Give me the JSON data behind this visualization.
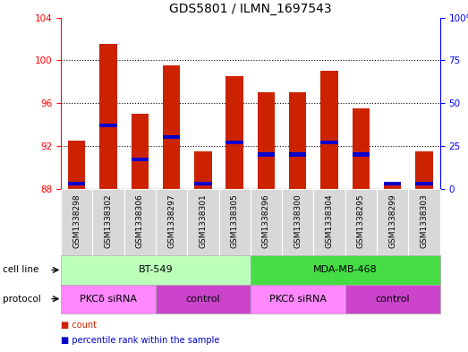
{
  "title": "GDS5801 / ILMN_1697543",
  "samples": [
    "GSM1338298",
    "GSM1338302",
    "GSM1338306",
    "GSM1338297",
    "GSM1338301",
    "GSM1338305",
    "GSM1338296",
    "GSM1338300",
    "GSM1338304",
    "GSM1338295",
    "GSM1338299",
    "GSM1338303"
  ],
  "count_values": [
    92.5,
    101.5,
    95.0,
    99.5,
    91.5,
    98.5,
    97.0,
    97.0,
    99.0,
    95.5,
    88.5,
    91.5
  ],
  "percentile_values": [
    3.0,
    37.0,
    17.0,
    30.0,
    3.0,
    27.0,
    20.0,
    20.0,
    27.0,
    20.0,
    3.0,
    3.0
  ],
  "ylim_left": [
    88,
    104
  ],
  "ylim_right": [
    0,
    100
  ],
  "yticks_left": [
    88,
    92,
    96,
    100,
    104
  ],
  "yticks_right": [
    0,
    25,
    50,
    75,
    100
  ],
  "ytick_labels_right": [
    "0",
    "25",
    "50",
    "75",
    "100%"
  ],
  "bar_color": "#cc2200",
  "percentile_color": "#0000cc",
  "bar_width": 0.55,
  "cell_line_groups": [
    {
      "label": "BT-549",
      "start": 0,
      "end": 6,
      "color": "#bbffbb"
    },
    {
      "label": "MDA-MB-468",
      "start": 6,
      "end": 12,
      "color": "#44dd44"
    }
  ],
  "protocol_groups": [
    {
      "label": "PKCδ siRNA",
      "start": 0,
      "end": 3,
      "color": "#ff88ff"
    },
    {
      "label": "control",
      "start": 3,
      "end": 6,
      "color": "#cc44cc"
    },
    {
      "label": "PKCδ siRNA",
      "start": 6,
      "end": 9,
      "color": "#ff88ff"
    },
    {
      "label": "control",
      "start": 9,
      "end": 12,
      "color": "#cc44cc"
    }
  ],
  "title_fontsize": 10,
  "tick_fontsize": 7.5,
  "sample_fontsize": 6.5,
  "legend_fontsize": 7
}
